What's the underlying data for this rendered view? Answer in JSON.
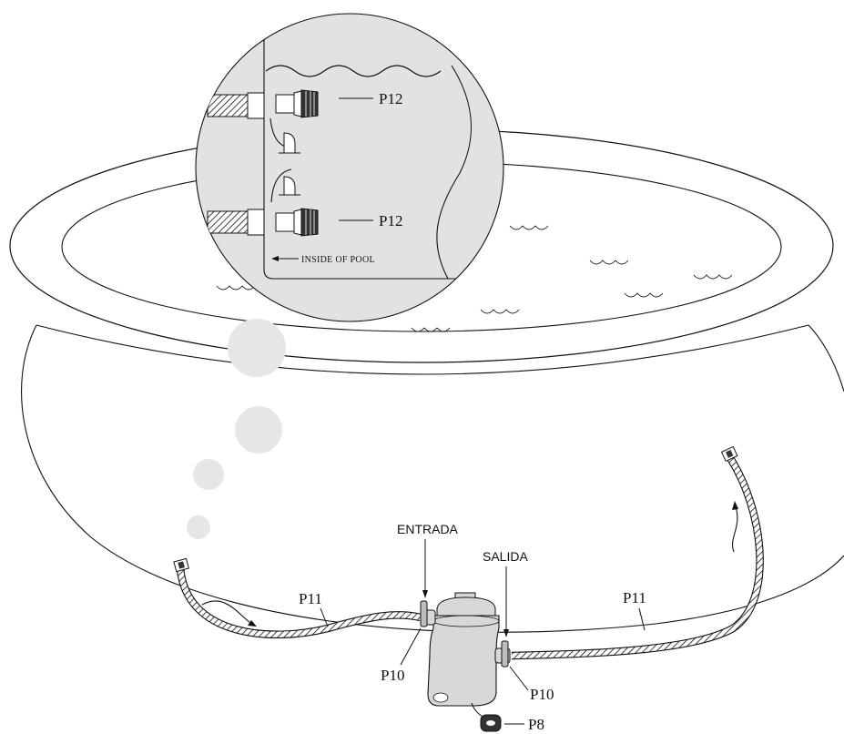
{
  "labels": {
    "entrada": "ENTRADA",
    "salida": "SALIDA",
    "hose_left": "P11",
    "hose_right": "P11",
    "clamp_left": "P10",
    "clamp_right": "P10",
    "cord": "P8",
    "strainer_top": "P12",
    "strainer_bottom": "P12",
    "inside_pool": "INSIDE OF POOL"
  },
  "colors": {
    "line": "#111111",
    "inset_fill": "#e2e2e2",
    "bubble": "#e6e6e6",
    "pump_body": "#d8d8d8",
    "hose_fill": "#bdbdbd"
  }
}
